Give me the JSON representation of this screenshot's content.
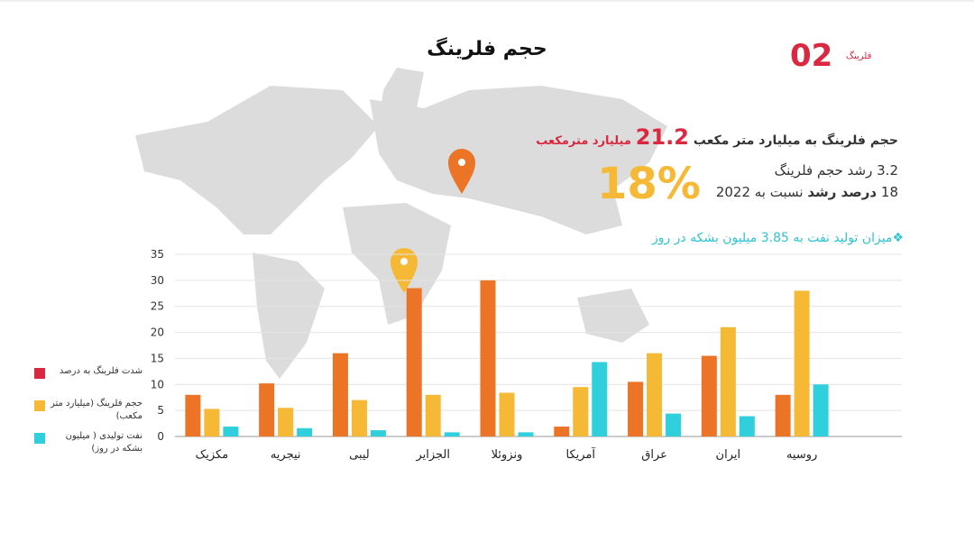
{
  "header": {
    "title": "حجم فلرینگ",
    "number": "02",
    "tag": "فلرینگ"
  },
  "facts": {
    "volume_label": "حجم فلرینگ به میلیارد متر مکعب",
    "volume_value": "21.2",
    "volume_unit": "میلیارد مترمکعب",
    "growth_line1": "3.2 رشد حجم فلرینگ",
    "growth_line2_a": "18",
    "growth_line2_b": "درصد رشد",
    "growth_line2_c": "نسبت به 2022",
    "big_percent": "18%",
    "oil_note": "❖میزان تولید نفت به 3.85 میلیون بشکه در روز"
  },
  "chart_data": {
    "type": "bar",
    "categories": [
      "مکزیک",
      "نیجریه",
      "لیبی",
      "الجزایر",
      "ونزوئلا",
      "آمریکا",
      "عراق",
      "ایران",
      "روسیه"
    ],
    "series": [
      {
        "name": "شدت فلرینگ به درصد",
        "color": "#ec7427",
        "legend_color": "#d9283f",
        "values": [
          8,
          10.2,
          16,
          28.5,
          30,
          1.9,
          10.5,
          15.5,
          8
        ]
      },
      {
        "name": "حجم فلرینگ (میلیارد متر مکعب)",
        "color": "#f5b935",
        "legend_color": "#f5b935",
        "values": [
          5.3,
          5.5,
          7,
          8,
          8.4,
          9.5,
          16,
          21,
          28
        ]
      },
      {
        "name": "نفت تولیدی ( میلیون بشکه در روز)",
        "color": "#2fd0dc",
        "legend_color": "#2fd0dc",
        "values": [
          1.9,
          1.6,
          1.2,
          0.8,
          0.8,
          14.3,
          4.4,
          3.9,
          10
        ]
      }
    ],
    "ylim": [
      0,
      35
    ],
    "yticks": [
      0,
      5,
      10,
      15,
      20,
      25,
      30,
      35
    ],
    "grid": true
  }
}
